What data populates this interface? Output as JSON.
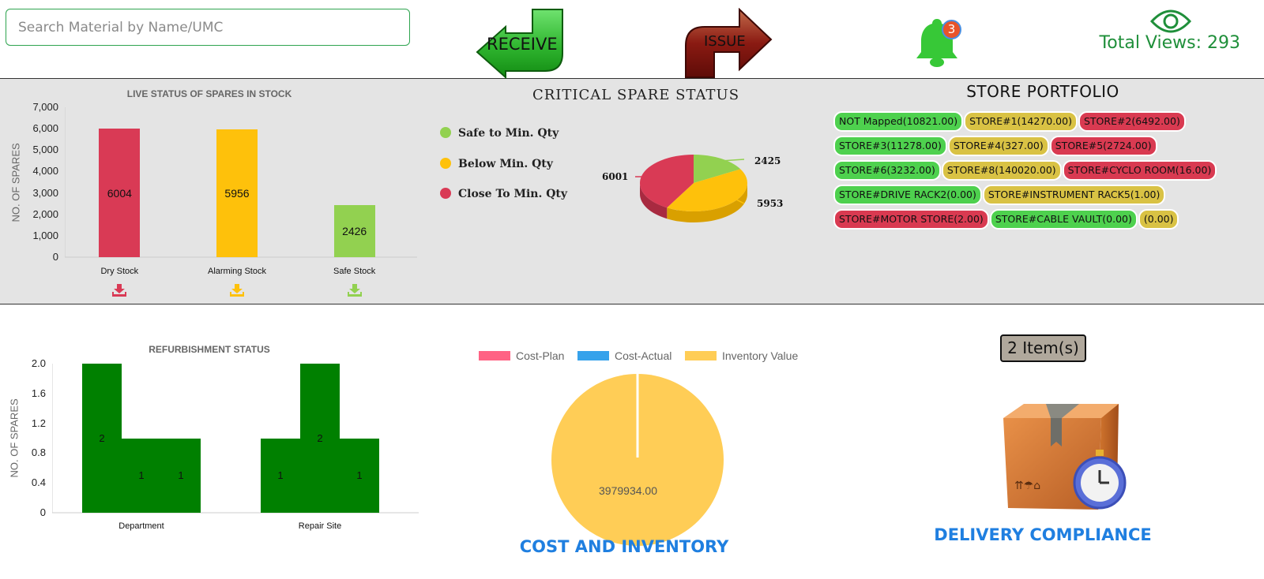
{
  "header": {
    "search_placeholder": "Search Material by Name/UMC",
    "receive_label": "RECEIVE",
    "issue_label": "ISSUE",
    "notification_count": "3",
    "views_text": "Total Views: 293"
  },
  "live_status": {
    "title": "LIVE STATUS OF SPARES IN STOCK",
    "y_axis_title": "NO. OF SPARES",
    "chart_data": {
      "type": "bar",
      "categories": [
        "Dry Stock",
        "Alarming Stock",
        "Safe Stock"
      ],
      "values": [
        6004,
        5956,
        2426
      ],
      "value_labels": [
        "6004",
        "5956",
        "2426"
      ],
      "colors": [
        "#d93a55",
        "#fec10b",
        "#92d150"
      ],
      "yticks": [
        "7,000",
        "6,000",
        "5,000",
        "4,000",
        "3,000",
        "2,000",
        "1,000",
        "0"
      ],
      "ylim": [
        0,
        7000
      ]
    }
  },
  "critical": {
    "title": "CRITICAL SPARE STATUS",
    "chart_data": {
      "type": "pie",
      "legend": [
        {
          "label": "Safe to Min. Qty",
          "color": "#92d150"
        },
        {
          "label": "Below Min. Qty",
          "color": "#fec10b"
        },
        {
          "label": "Close To Min. Qty",
          "color": "#d93a55"
        }
      ],
      "values": [
        2425,
        5953,
        6001
      ],
      "value_labels": [
        "2425",
        "5953",
        "6001"
      ]
    }
  },
  "portfolio": {
    "title": "STORE PORTFOLIO",
    "stores": [
      {
        "label": "NOT Mapped(10821.00)",
        "status": "green"
      },
      {
        "label": "STORE#1(14270.00)",
        "status": "yellow"
      },
      {
        "label": "STORE#2(6492.00)",
        "status": "red"
      },
      {
        "label": "STORE#3(11278.00)",
        "status": "green"
      },
      {
        "label": "STORE#4(327.00)",
        "status": "yellow"
      },
      {
        "label": "STORE#5(2724.00)",
        "status": "red"
      },
      {
        "label": "STORE#6(3232.00)",
        "status": "green"
      },
      {
        "label": "STORE#8(140020.00)",
        "status": "yellow"
      },
      {
        "label": "STORE#CYCLO ROOM(16.00)",
        "status": "red"
      },
      {
        "label": "STORE#DRIVE RACK2(0.00)",
        "status": "green"
      },
      {
        "label": "STORE#INSTRUMENT RACK5(1.00)",
        "status": "yellow"
      },
      {
        "label": "STORE#MOTOR STORE(2.00)",
        "status": "red"
      },
      {
        "label": "STORE#CABLE VAULT(0.00)",
        "status": "green"
      },
      {
        "label": "(0.00)",
        "status": "yellow"
      }
    ]
  },
  "refurb": {
    "title": "REFURBISHMENT STATUS",
    "y_axis_title": "NO. OF SPARES",
    "chart_data": {
      "type": "bar",
      "categories": [
        "Department",
        "Repair Site"
      ],
      "groups": [
        {
          "category": "Department",
          "values": [
            2,
            1,
            1
          ],
          "labels": [
            "2",
            "1",
            "1"
          ]
        },
        {
          "category": "Repair Site",
          "values": [
            1,
            2,
            1
          ],
          "labels": [
            "1",
            "2",
            "1"
          ]
        }
      ],
      "color": "#008000",
      "yticks": [
        "2.0",
        "1.6",
        "1.2",
        "0.8",
        "0.4",
        "0"
      ],
      "ylim": [
        0,
        2
      ]
    }
  },
  "cost": {
    "title": "COST AND INVENTORY",
    "chart_data": {
      "type": "pie",
      "legend": [
        {
          "label": "Cost-Plan",
          "color": "#ff6384"
        },
        {
          "label": "Cost-Actual",
          "color": "#36a2eb"
        },
        {
          "label": "Inventory Value",
          "color": "#ffcd56"
        }
      ],
      "values": [
        0,
        0,
        3979934.0
      ],
      "center_label": "3979934.00"
    }
  },
  "delivery": {
    "items_label": "2 Item(s)",
    "title": "DELIVERY COMPLIANCE"
  }
}
